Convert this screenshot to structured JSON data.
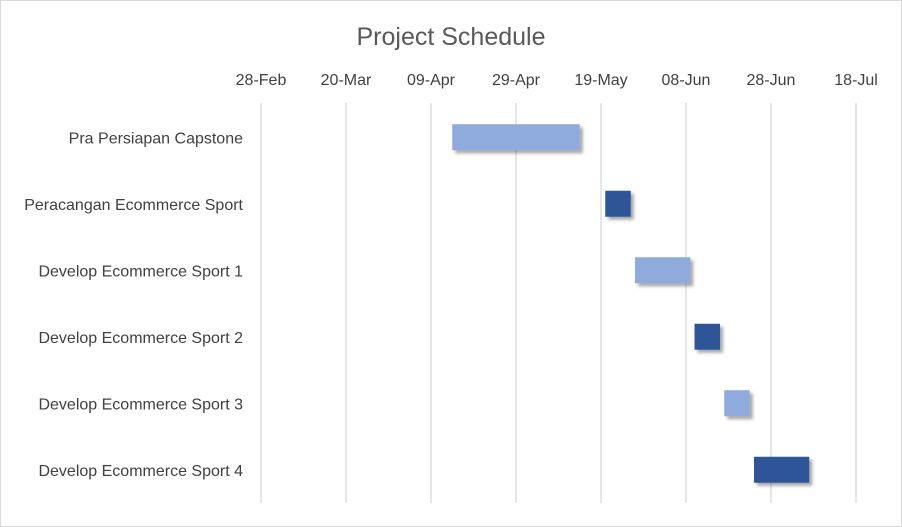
{
  "chart_data": {
    "type": "gantt",
    "title": "Project Schedule",
    "x_axis": {
      "type": "date",
      "min": "2021-02-28",
      "max": "2021-07-18",
      "ticks": [
        "28-Feb",
        "20-Mar",
        "09-Apr",
        "29-Apr",
        "19-May",
        "08-Jun",
        "28-Jun",
        "18-Jul"
      ],
      "position": "top",
      "gridlines": true
    },
    "tasks": [
      {
        "name": "Pra Persiapan Capstone",
        "start": "2021-04-14",
        "end": "2021-05-14"
      },
      {
        "name": "Peracangan Ecommerce Sport",
        "start": "2021-05-20",
        "end": "2021-05-26"
      },
      {
        "name": "Develop Ecommerce Sport 1",
        "start": "2021-05-27",
        "end": "2021-06-09"
      },
      {
        "name": "Develop Ecommerce Sport 2",
        "start": "2021-06-10",
        "end": "2021-06-16"
      },
      {
        "name": "Develop Ecommerce Sport 3",
        "start": "2021-06-17",
        "end": "2021-06-23"
      },
      {
        "name": "Develop Ecommerce Sport 4",
        "start": "2021-06-24",
        "end": "2021-07-07"
      }
    ],
    "bar_colors": [
      "#8faadc",
      "#2f5597"
    ]
  }
}
